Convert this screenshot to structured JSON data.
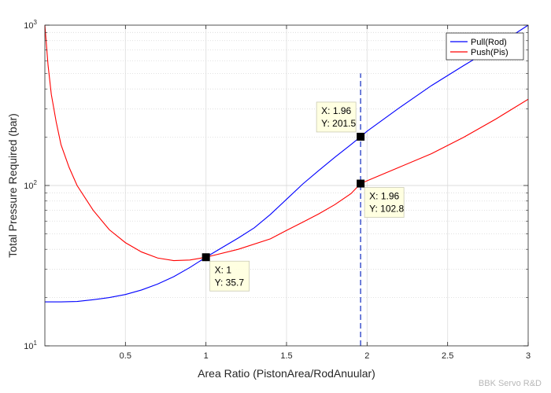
{
  "chart_data": {
    "type": "line",
    "title": "",
    "xlabel": "Area Ratio (PistonArea/RodAnuular)",
    "ylabel": "Total Pressure Required (bar)",
    "xlim": [
      0,
      3
    ],
    "ylim": [
      10,
      1000
    ],
    "yscale": "log",
    "grid": true,
    "legend_position": "top-right",
    "x_ticks": [
      0.5,
      1,
      1.5,
      2,
      2.5,
      3
    ],
    "x_tick_labels": [
      "0.5",
      "1",
      "1.5",
      "2",
      "2.5",
      "3"
    ],
    "y_ticks": [
      10,
      100,
      1000
    ],
    "y_tick_labels": [
      {
        "base": "10",
        "exp": "1"
      },
      {
        "base": "10",
        "exp": "2"
      },
      {
        "base": "10",
        "exp": "3"
      }
    ],
    "series": [
      {
        "name": "Pull(Rod)",
        "color": "#0000ff",
        "points": [
          [
            0.0,
            18.8
          ],
          [
            0.1,
            18.8
          ],
          [
            0.2,
            18.9
          ],
          [
            0.3,
            19.4
          ],
          [
            0.4,
            20.0
          ],
          [
            0.5,
            20.9
          ],
          [
            0.6,
            22.3
          ],
          [
            0.7,
            24.3
          ],
          [
            0.8,
            27.0
          ],
          [
            0.9,
            30.8
          ],
          [
            1.0,
            35.7
          ],
          [
            1.1,
            41.0
          ],
          [
            1.2,
            47.0
          ],
          [
            1.3,
            54.5
          ],
          [
            1.4,
            66.0
          ],
          [
            1.5,
            82.0
          ],
          [
            1.6,
            102.0
          ],
          [
            1.7,
            124.0
          ],
          [
            1.8,
            150.0
          ],
          [
            1.9,
            180.0
          ],
          [
            1.96,
            201.5
          ],
          [
            2.0,
            218.0
          ],
          [
            2.2,
            305.0
          ],
          [
            2.4,
            420.0
          ],
          [
            2.6,
            560.0
          ],
          [
            2.8,
            740.0
          ],
          [
            3.0,
            1000.0
          ]
        ]
      },
      {
        "name": "Push(Pis)",
        "color": "#ff0000",
        "points": [
          [
            0.0,
            1000.0
          ],
          [
            0.02,
            560.0
          ],
          [
            0.04,
            370.0
          ],
          [
            0.07,
            250.0
          ],
          [
            0.1,
            180.0
          ],
          [
            0.15,
            130.0
          ],
          [
            0.2,
            100.0
          ],
          [
            0.3,
            70.0
          ],
          [
            0.4,
            53.0
          ],
          [
            0.5,
            44.0
          ],
          [
            0.6,
            38.5
          ],
          [
            0.7,
            35.3
          ],
          [
            0.8,
            34.0
          ],
          [
            0.9,
            34.3
          ],
          [
            1.0,
            35.7
          ],
          [
            1.2,
            40.0
          ],
          [
            1.4,
            46.5
          ],
          [
            1.5,
            52.5
          ],
          [
            1.6,
            59.0
          ],
          [
            1.7,
            66.5
          ],
          [
            1.8,
            76.0
          ],
          [
            1.9,
            89.0
          ],
          [
            1.96,
            102.8
          ],
          [
            2.0,
            107.0
          ],
          [
            2.2,
            130.0
          ],
          [
            2.4,
            158.0
          ],
          [
            2.6,
            200.0
          ],
          [
            2.8,
            260.0
          ],
          [
            3.0,
            345.0
          ]
        ]
      }
    ],
    "reference_line": {
      "x": 1.96,
      "y_range": [
        10,
        500
      ],
      "style": "dashed",
      "color": "#4a5fd0"
    },
    "datatips": [
      {
        "x": 1,
        "y": 35.7,
        "x_text": "X: 1",
        "y_text": "Y: 35.7",
        "placement": "below-right"
      },
      {
        "x": 1.96,
        "y": 201.5,
        "x_text": "X: 1.96",
        "y_text": "Y: 201.5",
        "placement": "above-left"
      },
      {
        "x": 1.96,
        "y": 102.8,
        "x_text": "X: 1.96",
        "y_text": "Y: 102.8",
        "placement": "below-right"
      }
    ]
  },
  "watermark": "BBK Servo R&D"
}
